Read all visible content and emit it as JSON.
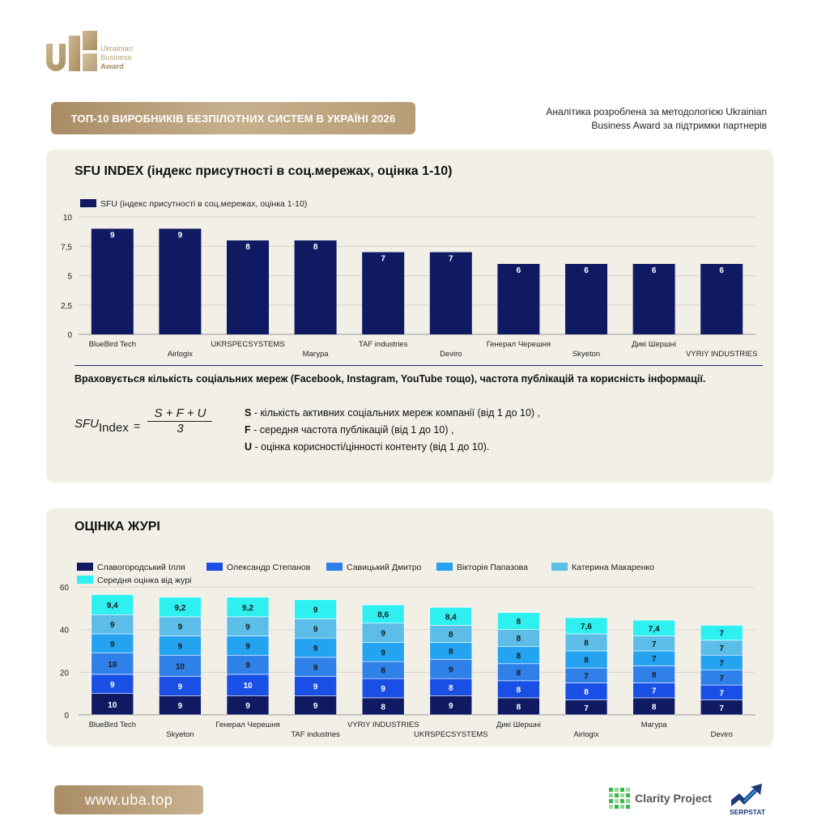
{
  "logo": {
    "line1": "Ukrainian",
    "line2": "Business",
    "line3": "Award"
  },
  "header": {
    "title": "ТОП-10 ВИРОБНИКІВ БЕЗПІЛОТНИХ СИСТЕМ В УКРАЇНІ 2026",
    "note_line1": "Аналітика розроблена за методологією Ukrainian",
    "note_line2": "Business Award за підтримки партнерів"
  },
  "sfu": {
    "title": "SFU INDEX (індекс присутності в соц.мережах, оцінка 1-10)",
    "explanation": "Враховується кількість соціальних мереж (Facebook, Instagram, YouTube тощо), частота публікацій та корисність інформації.",
    "formula": {
      "lhs": "SFU",
      "lhs_sub": "Index",
      "eq": "=",
      "numerator": "S + F + U",
      "denominator": "3"
    },
    "definitions": [
      {
        "key": "S",
        "text": " - кількість активних соціальних мереж компанії (від 1 до 10) ,"
      },
      {
        "key": "F",
        "text": " - середня частота публікацій (від 1 до 10) ,"
      },
      {
        "key": "U",
        "text": " - оцінка корисності/цінності контенту (від 1 до 10)."
      }
    ]
  },
  "jury": {
    "title": "ОЦІНКА ЖУРІ"
  },
  "footer": {
    "url": "www.uba.top",
    "partner1": "Clarity Project",
    "partner2": "SERPSTAT"
  },
  "chart_data": [
    {
      "type": "bar",
      "legend": [
        "SFU (індекс присутності в соц.мережах, оцінка 1-10)"
      ],
      "categories": [
        "BlueBird Tech",
        "Airlogix",
        "UKRSPECSYSTEMS",
        "Магура",
        "TAF industries",
        "Deviro",
        "Генерал Черешня",
        "Skyeton",
        "Дикі Шершні",
        "VYRIY INDUSTRIES"
      ],
      "series": [
        {
          "name": "SFU (індекс присутності в соц.мережах, оцінка 1-10)",
          "values": [
            9,
            9,
            8,
            8,
            7,
            7,
            6,
            6,
            6,
            6
          ],
          "color": "#0f1a63"
        }
      ],
      "ylim": [
        0,
        10
      ],
      "yticks": [
        "0",
        "2,5",
        "5",
        "7,5",
        "10"
      ],
      "grid": true,
      "legend_position": "top-left"
    },
    {
      "type": "bar",
      "stacked": true,
      "categories": [
        "BlueBird Tech",
        "Skyeton",
        "Генерал Черешня",
        "TAF industries",
        "VYRIY INDUSTRIES",
        "UKRSPECSYSTEMS",
        "Дикі Шершні",
        "Airlogix",
        "Магура",
        "Deviro"
      ],
      "series": [
        {
          "name": "Славогородський Ілля",
          "values": [
            10,
            9,
            9,
            9,
            8,
            9,
            8,
            7,
            8,
            7
          ],
          "labels": [
            "10",
            "9",
            "9",
            "9",
            "8",
            "9",
            "8",
            "7",
            "8",
            "7"
          ],
          "color": "#0f1a63"
        },
        {
          "name": "Олександр Степанов",
          "values": [
            9,
            9,
            10,
            9,
            9,
            8,
            8,
            8,
            7,
            7
          ],
          "labels": [
            "9",
            "9",
            "10",
            "9",
            "9",
            "8",
            "8",
            "8",
            "7",
            "7"
          ],
          "color": "#1a4fe6"
        },
        {
          "name": "Савицький Дмитро",
          "values": [
            10,
            10,
            9,
            9,
            8,
            9,
            8,
            7,
            8,
            7
          ],
          "labels": [
            "10",
            "10",
            "9",
            "9",
            "8",
            "9",
            "8",
            "7",
            "8",
            "7"
          ],
          "color": "#2f80e8"
        },
        {
          "name": "Вікторія Папазова",
          "values": [
            9,
            9,
            9,
            9,
            9,
            8,
            8,
            8,
            7,
            7
          ],
          "labels": [
            "9",
            "9",
            "9",
            "9",
            "9",
            "8",
            "8",
            "8",
            "7",
            "7"
          ],
          "color": "#23a3f0"
        },
        {
          "name": "Катерина Макаренко",
          "values": [
            9,
            9,
            9,
            9,
            9,
            8,
            8,
            8,
            7,
            7
          ],
          "labels": [
            "9",
            "9",
            "9",
            "9",
            "9",
            "8",
            "8",
            "8",
            "7",
            "7"
          ],
          "color": "#5bbde8"
        },
        {
          "name": "Середня оцінка від журі",
          "values": [
            9.4,
            9.2,
            9.2,
            9,
            8.6,
            8.4,
            8,
            7.6,
            7.4,
            7
          ],
          "labels": [
            "9,4",
            "9,2",
            "9,2",
            "9",
            "8,6",
            "8,4",
            "8",
            "7,6",
            "7,4",
            "7"
          ],
          "color": "#2ef0f0"
        }
      ],
      "ylim": [
        0,
        60
      ],
      "yticks": [
        "0",
        "20",
        "40",
        "60"
      ],
      "grid": true,
      "legend_position": "top-left"
    }
  ]
}
